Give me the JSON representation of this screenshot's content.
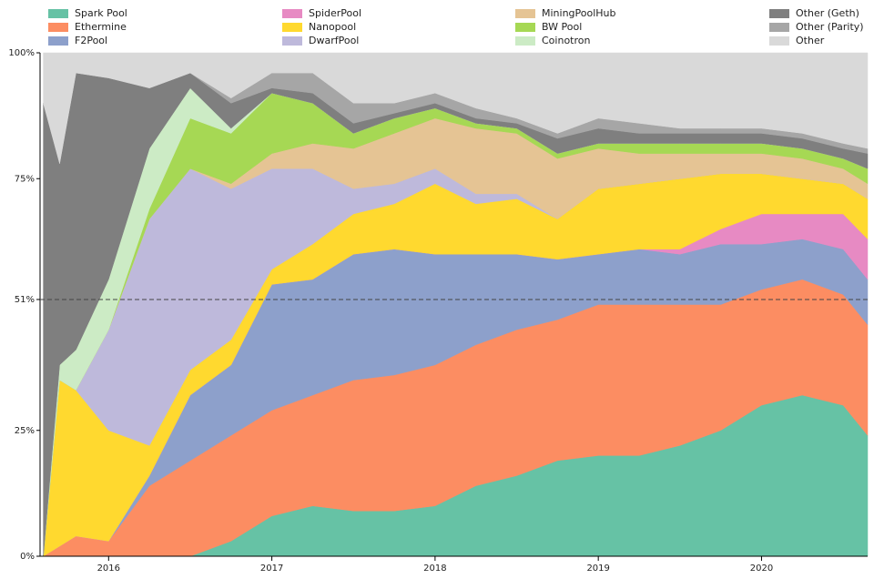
{
  "chart_data": {
    "type": "stacked_area",
    "x": [
      2015.6,
      2015.7,
      2015.8,
      2016.0,
      2016.25,
      2016.5,
      2016.75,
      2017.0,
      2017.25,
      2017.5,
      2017.75,
      2018.0,
      2018.25,
      2018.5,
      2018.75,
      2019.0,
      2019.25,
      2019.5,
      2019.75,
      2020.0,
      2020.25,
      2020.5,
      2020.65
    ],
    "xlim": [
      2015.58,
      2020.65
    ],
    "xticks": [
      2016,
      2017,
      2018,
      2019,
      2020
    ],
    "ylim": [
      0,
      100
    ],
    "yticks": [
      {
        "value": 0,
        "label": "0%"
      },
      {
        "value": 25,
        "label": "25%"
      },
      {
        "value": 51,
        "label": "51%"
      },
      {
        "value": 75,
        "label": "75%"
      },
      {
        "value": 100,
        "label": "100%"
      }
    ],
    "reference_line": 51,
    "series": [
      {
        "name": "Spark Pool",
        "color": "#66c2a5",
        "values": [
          0,
          0,
          0,
          0,
          0,
          0,
          3,
          8,
          10,
          9,
          9,
          10,
          14,
          16,
          19,
          20,
          20,
          22,
          25,
          30,
          32,
          30,
          24
        ]
      },
      {
        "name": "Ethermine",
        "color": "#fc8d62",
        "values": [
          0,
          2,
          4,
          3,
          14,
          19,
          21,
          21,
          22,
          26,
          27,
          28,
          28,
          29,
          28,
          30,
          30,
          28,
          25,
          23,
          23,
          22,
          22
        ]
      },
      {
        "name": "F2Pool",
        "color": "#8da0cb",
        "values": [
          0,
          0,
          0,
          0,
          2,
          13,
          14,
          25,
          23,
          25,
          25,
          22,
          18,
          15,
          12,
          10,
          11,
          10,
          12,
          9,
          8,
          9,
          9
        ]
      },
      {
        "name": "SpiderPool",
        "color": "#e78ac3",
        "values": [
          0,
          0,
          0,
          0,
          0,
          0,
          0,
          0,
          0,
          0,
          0,
          0,
          0,
          0,
          0,
          0,
          0,
          1,
          3,
          6,
          5,
          7,
          8
        ]
      },
      {
        "name": "Nanopool",
        "color": "#ffd92f",
        "values": [
          0,
          33,
          29,
          22,
          6,
          5,
          5,
          3,
          7,
          8,
          9,
          14,
          10,
          11,
          8,
          13,
          13,
          14,
          11,
          8,
          7,
          6,
          8
        ]
      },
      {
        "name": "DwarfPool",
        "color": "#beb9db",
        "values": [
          0,
          0,
          0,
          20,
          45,
          40,
          30,
          20,
          15,
          5,
          4,
          3,
          2,
          1,
          0,
          0,
          0,
          0,
          0,
          0,
          0,
          0,
          0
        ]
      },
      {
        "name": "MiningPoolHub",
        "color": "#e5c494",
        "values": [
          0,
          0,
          0,
          0,
          0,
          0,
          1,
          3,
          5,
          8,
          10,
          10,
          13,
          12,
          12,
          8,
          6,
          5,
          4,
          4,
          4,
          3,
          3
        ]
      },
      {
        "name": "BW Pool",
        "color": "#a6d854",
        "values": [
          0,
          0,
          0,
          0,
          2,
          10,
          10,
          12,
          8,
          3,
          3,
          2,
          1,
          1,
          1,
          1,
          2,
          2,
          2,
          2,
          2,
          2,
          3
        ]
      },
      {
        "name": "Coinotron",
        "color": "#ccebc5",
        "values": [
          0,
          3,
          8,
          10,
          12,
          6,
          1,
          0,
          0,
          0,
          0,
          0,
          0,
          0,
          0,
          0,
          0,
          0,
          0,
          0,
          0,
          0,
          0
        ]
      },
      {
        "name": "Other (Geth)",
        "color": "#7f7f7f",
        "values": [
          90,
          40,
          55,
          40,
          12,
          3,
          5,
          1,
          2,
          2,
          1,
          1,
          1,
          1,
          3,
          3,
          2,
          2,
          2,
          2,
          2,
          2,
          3
        ]
      },
      {
        "name": "Other (Parity)",
        "color": "#a6a6a6",
        "values": [
          0,
          0,
          0,
          0,
          0,
          0,
          1,
          3,
          4,
          4,
          2,
          2,
          2,
          1,
          1,
          2,
          2,
          1,
          1,
          1,
          1,
          1,
          1
        ]
      },
      {
        "name": "Other",
        "color": "#d9d9d9",
        "values": [
          10,
          22,
          4,
          5,
          7,
          4,
          9,
          4,
          4,
          10,
          10,
          8,
          11,
          13,
          16,
          13,
          14,
          15,
          15,
          15,
          16,
          18,
          19
        ]
      }
    ]
  }
}
